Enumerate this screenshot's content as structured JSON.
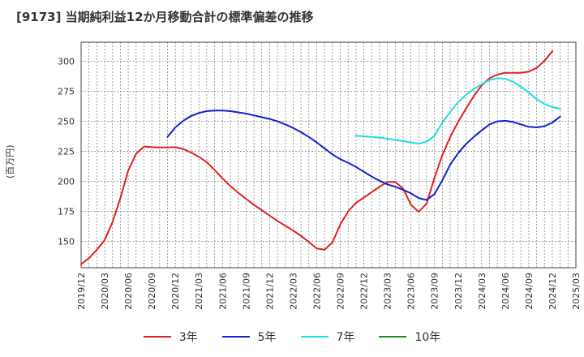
{
  "chart_data": {
    "type": "line",
    "title": "[9173]  当期純利益12か月移動合計の標準偏差の推移",
    "ylabel": "(百万円)",
    "ylim": [
      128,
      316
    ],
    "yticks": [
      150,
      175,
      200,
      225,
      250,
      275,
      300
    ],
    "x_start": "2019/12",
    "x_end": "2025/03",
    "xticks": [
      "2019/12",
      "2020/03",
      "2020/06",
      "2020/09",
      "2020/12",
      "2021/03",
      "2021/06",
      "2021/09",
      "2021/12",
      "2022/03",
      "2022/06",
      "2022/09",
      "2022/12",
      "2023/03",
      "2023/06",
      "2023/09",
      "2023/12",
      "2024/03",
      "2024/06",
      "2024/09",
      "2024/12",
      "2025/03"
    ],
    "grid": true,
    "legend_position": "bottom",
    "series": [
      {
        "name": "3年",
        "color": "#dd2222",
        "points": [
          [
            "2019/12",
            131
          ],
          [
            "2020/01",
            136
          ],
          [
            "2020/02",
            143
          ],
          [
            "2020/03",
            151
          ],
          [
            "2020/04",
            166
          ],
          [
            "2020/05",
            186
          ],
          [
            "2020/06",
            209
          ],
          [
            "2020/07",
            223
          ],
          [
            "2020/08",
            229
          ],
          [
            "2020/09",
            228.5
          ],
          [
            "2020/10",
            228.3
          ],
          [
            "2020/11",
            228.3
          ],
          [
            "2020/12",
            228.5
          ],
          [
            "2021/01",
            227
          ],
          [
            "2021/02",
            224
          ],
          [
            "2021/03",
            220.5
          ],
          [
            "2021/04",
            216
          ],
          [
            "2021/05",
            209.5
          ],
          [
            "2021/06",
            202.5
          ],
          [
            "2021/07",
            196
          ],
          [
            "2021/08",
            190.5
          ],
          [
            "2021/09",
            185.5
          ],
          [
            "2021/10",
            180.5
          ],
          [
            "2021/11",
            176
          ],
          [
            "2021/12",
            171.5
          ],
          [
            "2022/01",
            167
          ],
          [
            "2022/02",
            163
          ],
          [
            "2022/03",
            159
          ],
          [
            "2022/04",
            154.5
          ],
          [
            "2022/05",
            149.5
          ],
          [
            "2022/06",
            144
          ],
          [
            "2022/07",
            143
          ],
          [
            "2022/08",
            149
          ],
          [
            "2022/09",
            164
          ],
          [
            "2022/10",
            175
          ],
          [
            "2022/11",
            182
          ],
          [
            "2022/12",
            186.5
          ],
          [
            "2023/01",
            191
          ],
          [
            "2023/02",
            195.5
          ],
          [
            "2023/03",
            199.5
          ],
          [
            "2023/04",
            199.5
          ],
          [
            "2023/05",
            194
          ],
          [
            "2023/06",
            180.5
          ],
          [
            "2023/07",
            174.5
          ],
          [
            "2023/08",
            181.5
          ],
          [
            "2023/09",
            203
          ],
          [
            "2023/10",
            222
          ],
          [
            "2023/11",
            237
          ],
          [
            "2023/12",
            249.5
          ],
          [
            "2024/01",
            260.5
          ],
          [
            "2024/02",
            271
          ],
          [
            "2024/03",
            280
          ],
          [
            "2024/04",
            286
          ],
          [
            "2024/05",
            289
          ],
          [
            "2024/06",
            290.5
          ],
          [
            "2024/07",
            290.5
          ],
          [
            "2024/08",
            290.5
          ],
          [
            "2024/09",
            291.5
          ],
          [
            "2024/10",
            294.5
          ],
          [
            "2024/11",
            300.5
          ],
          [
            "2024/12",
            308.5
          ]
        ]
      },
      {
        "name": "5年",
        "color": "#1122cc",
        "points": [
          [
            "2020/11",
            237
          ],
          [
            "2020/12",
            245
          ],
          [
            "2021/01",
            250.5
          ],
          [
            "2021/02",
            254.5
          ],
          [
            "2021/03",
            257
          ],
          [
            "2021/04",
            258.5
          ],
          [
            "2021/05",
            259
          ],
          [
            "2021/06",
            259
          ],
          [
            "2021/07",
            258.5
          ],
          [
            "2021/08",
            257.5
          ],
          [
            "2021/09",
            256.5
          ],
          [
            "2021/10",
            255
          ],
          [
            "2021/11",
            253.5
          ],
          [
            "2021/12",
            252
          ],
          [
            "2022/01",
            250
          ],
          [
            "2022/02",
            247.5
          ],
          [
            "2022/03",
            244.5
          ],
          [
            "2022/04",
            241
          ],
          [
            "2022/05",
            237
          ],
          [
            "2022/06",
            232.5
          ],
          [
            "2022/07",
            227.5
          ],
          [
            "2022/08",
            222.5
          ],
          [
            "2022/09",
            218.5
          ],
          [
            "2022/10",
            215.5
          ],
          [
            "2022/11",
            212
          ],
          [
            "2022/12",
            208
          ],
          [
            "2023/01",
            204
          ],
          [
            "2023/02",
            200.5
          ],
          [
            "2023/03",
            197.5
          ],
          [
            "2023/04",
            195.5
          ],
          [
            "2023/05",
            193
          ],
          [
            "2023/06",
            190
          ],
          [
            "2023/07",
            186
          ],
          [
            "2023/08",
            184.5
          ],
          [
            "2023/09",
            189.5
          ],
          [
            "2023/10",
            201
          ],
          [
            "2023/11",
            214
          ],
          [
            "2023/12",
            223.5
          ],
          [
            "2024/01",
            231
          ],
          [
            "2024/02",
            237
          ],
          [
            "2024/03",
            242.5
          ],
          [
            "2024/04",
            247.5
          ],
          [
            "2024/05",
            250
          ],
          [
            "2024/06",
            250.5
          ],
          [
            "2024/07",
            249.5
          ],
          [
            "2024/08",
            247.5
          ],
          [
            "2024/09",
            245.5
          ],
          [
            "2024/10",
            245
          ],
          [
            "2024/11",
            246
          ],
          [
            "2024/12",
            249
          ],
          [
            "2025/01",
            254
          ]
        ]
      },
      {
        "name": "7年",
        "color": "#22dddd",
        "points": [
          [
            "2022/11",
            238
          ],
          [
            "2022/12",
            237.5
          ],
          [
            "2023/01",
            237
          ],
          [
            "2023/02",
            236.5
          ],
          [
            "2023/03",
            235.5
          ],
          [
            "2023/04",
            234.5
          ],
          [
            "2023/05",
            233.5
          ],
          [
            "2023/06",
            232.5
          ],
          [
            "2023/07",
            231.5
          ],
          [
            "2023/08",
            233
          ],
          [
            "2023/09",
            238
          ],
          [
            "2023/10",
            249
          ],
          [
            "2023/11",
            258
          ],
          [
            "2023/12",
            266
          ],
          [
            "2024/01",
            272
          ],
          [
            "2024/02",
            277
          ],
          [
            "2024/03",
            281
          ],
          [
            "2024/04",
            284.5
          ],
          [
            "2024/05",
            286
          ],
          [
            "2024/06",
            285.5
          ],
          [
            "2024/07",
            283
          ],
          [
            "2024/08",
            279
          ],
          [
            "2024/09",
            274
          ],
          [
            "2024/10",
            268.5
          ],
          [
            "2024/11",
            264.5
          ],
          [
            "2024/12",
            262
          ],
          [
            "2025/01",
            260.5
          ]
        ]
      },
      {
        "name": "10年",
        "color": "#228822",
        "points": []
      }
    ]
  }
}
